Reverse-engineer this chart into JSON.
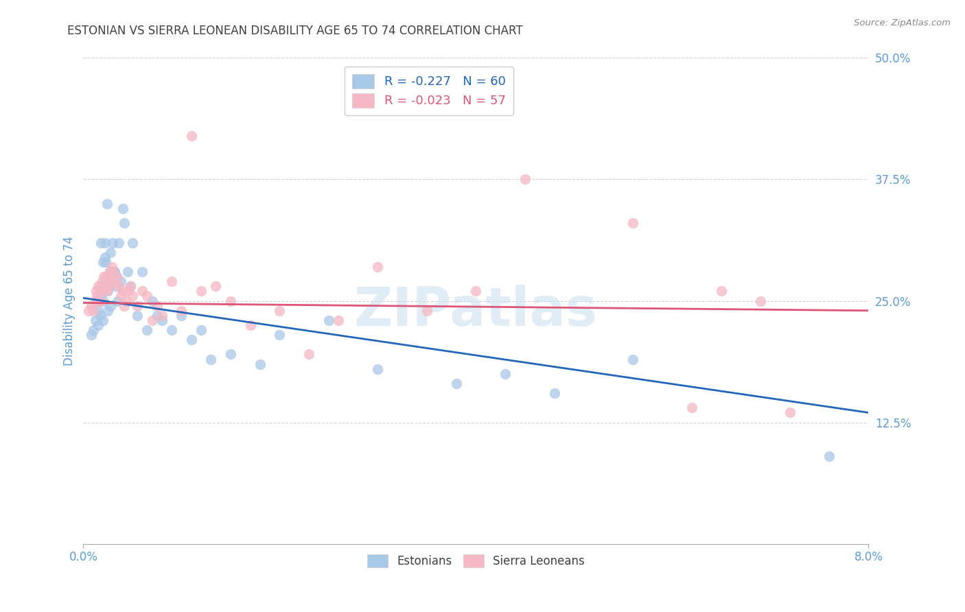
{
  "title": "ESTONIAN VS SIERRA LEONEAN DISABILITY AGE 65 TO 74 CORRELATION CHART",
  "source": "Source: ZipAtlas.com",
  "ylabel": "Disability Age 65 to 74",
  "xlim": [
    0.0,
    0.08
  ],
  "ylim": [
    0.0,
    0.5
  ],
  "ytick_labels": [
    "12.5%",
    "25.0%",
    "37.5%",
    "50.0%"
  ],
  "ytick_values": [
    0.125,
    0.25,
    0.375,
    0.5
  ],
  "blue_color": "#a8c8e8",
  "pink_color": "#f5b8c4",
  "blue_line_color": "#2266bb",
  "pink_line_color": "#dd5577",
  "title_color": "#404040",
  "axis_label_color": "#5b9bd5",
  "watermark_color": "#c8ddf0",
  "blue_r": -0.227,
  "blue_n": 60,
  "pink_r": -0.023,
  "pink_n": 57,
  "estonian_x": [
    0.0008,
    0.001,
    0.0012,
    0.0015,
    0.0015,
    0.0016,
    0.0017,
    0.0018,
    0.0018,
    0.002,
    0.002,
    0.0021,
    0.0021,
    0.0022,
    0.0022,
    0.0023,
    0.0023,
    0.0024,
    0.0025,
    0.0025,
    0.0026,
    0.0027,
    0.0027,
    0.0028,
    0.0028,
    0.0029,
    0.003,
    0.0031,
    0.0032,
    0.0033,
    0.0034,
    0.0035,
    0.0036,
    0.0038,
    0.004,
    0.0042,
    0.0045,
    0.0048,
    0.005,
    0.0055,
    0.006,
    0.0065,
    0.007,
    0.0075,
    0.008,
    0.009,
    0.01,
    0.011,
    0.012,
    0.013,
    0.015,
    0.018,
    0.02,
    0.025,
    0.03,
    0.038,
    0.043,
    0.048,
    0.056,
    0.076
  ],
  "estonian_y": [
    0.215,
    0.22,
    0.23,
    0.24,
    0.225,
    0.25,
    0.235,
    0.31,
    0.255,
    0.23,
    0.29,
    0.265,
    0.25,
    0.31,
    0.295,
    0.27,
    0.29,
    0.35,
    0.26,
    0.24,
    0.27,
    0.28,
    0.265,
    0.3,
    0.245,
    0.27,
    0.31,
    0.28,
    0.28,
    0.265,
    0.275,
    0.25,
    0.31,
    0.27,
    0.345,
    0.33,
    0.28,
    0.265,
    0.31,
    0.235,
    0.28,
    0.22,
    0.25,
    0.235,
    0.23,
    0.22,
    0.235,
    0.21,
    0.22,
    0.19,
    0.195,
    0.185,
    0.215,
    0.23,
    0.18,
    0.165,
    0.175,
    0.155,
    0.19,
    0.09
  ],
  "sierraleone_x": [
    0.0005,
    0.0008,
    0.001,
    0.0012,
    0.0013,
    0.0014,
    0.0015,
    0.0016,
    0.0017,
    0.0018,
    0.0019,
    0.002,
    0.0021,
    0.0022,
    0.0023,
    0.0024,
    0.0025,
    0.0026,
    0.0027,
    0.0028,
    0.0029,
    0.003,
    0.0032,
    0.0034,
    0.0036,
    0.0038,
    0.004,
    0.0042,
    0.0044,
    0.0046,
    0.0048,
    0.005,
    0.0055,
    0.006,
    0.0065,
    0.007,
    0.0075,
    0.008,
    0.009,
    0.01,
    0.011,
    0.012,
    0.0135,
    0.015,
    0.017,
    0.02,
    0.023,
    0.026,
    0.03,
    0.035,
    0.04,
    0.045,
    0.056,
    0.062,
    0.065,
    0.069,
    0.072
  ],
  "sierraleone_y": [
    0.24,
    0.245,
    0.24,
    0.25,
    0.26,
    0.255,
    0.265,
    0.25,
    0.265,
    0.25,
    0.27,
    0.26,
    0.275,
    0.265,
    0.275,
    0.26,
    0.27,
    0.265,
    0.28,
    0.27,
    0.285,
    0.28,
    0.27,
    0.275,
    0.265,
    0.255,
    0.26,
    0.245,
    0.25,
    0.26,
    0.265,
    0.255,
    0.245,
    0.26,
    0.255,
    0.23,
    0.245,
    0.235,
    0.27,
    0.24,
    0.42,
    0.26,
    0.265,
    0.25,
    0.225,
    0.24,
    0.195,
    0.23,
    0.285,
    0.24,
    0.26,
    0.375,
    0.33,
    0.14,
    0.26,
    0.25,
    0.135
  ]
}
